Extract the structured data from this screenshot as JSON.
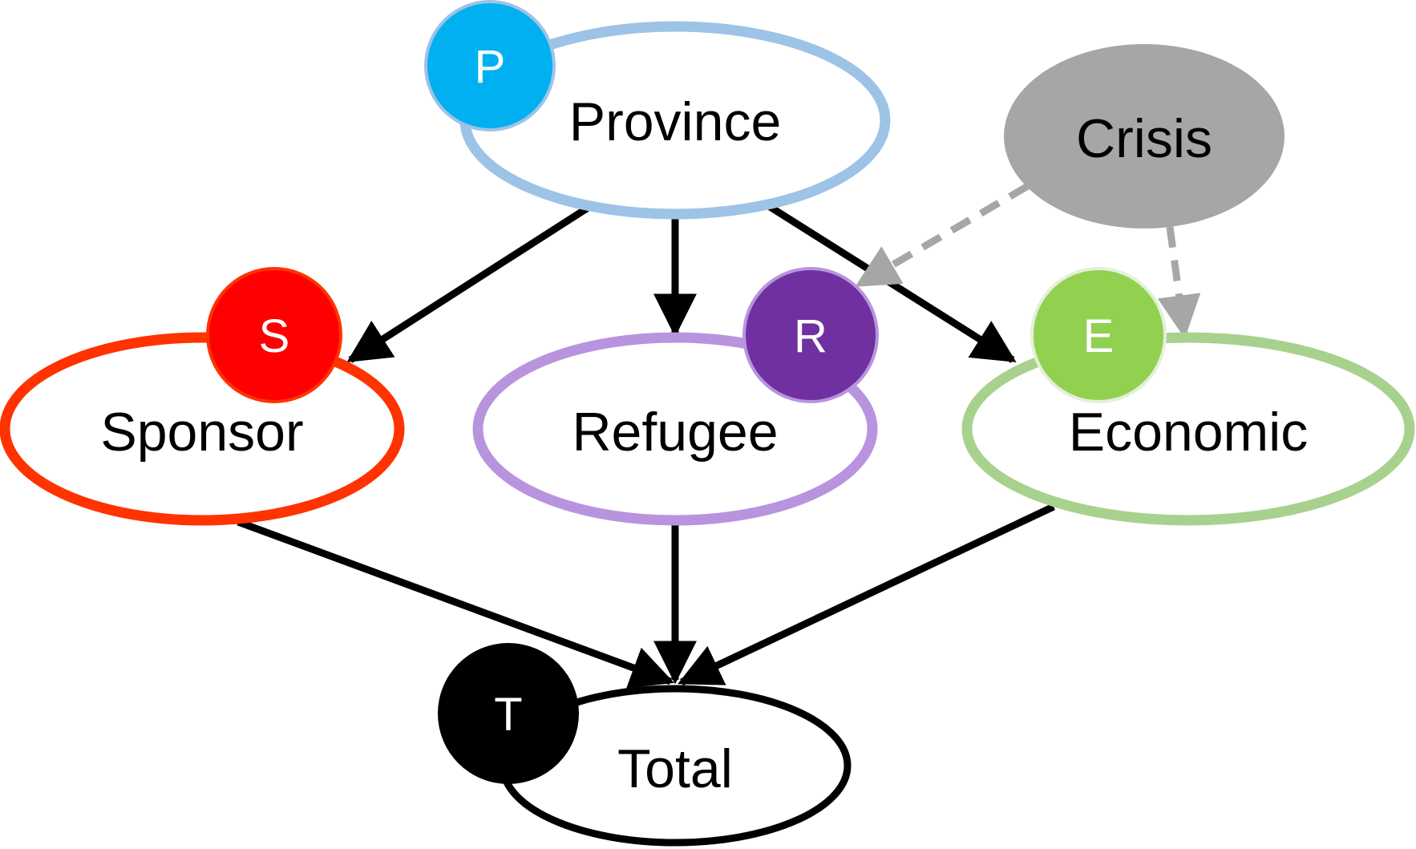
{
  "nodes": {
    "province": {
      "label": "Province",
      "badge": "P",
      "outline_color": "#9DC3E6",
      "badge_color": "#00B0F0"
    },
    "crisis": {
      "label": "Crisis",
      "fill_color": "#A6A6A6"
    },
    "sponsor": {
      "label": "Sponsor",
      "badge": "S",
      "outline_color": "#FF3300",
      "badge_color": "#FF0000"
    },
    "refugee": {
      "label": "Refugee",
      "badge": "R",
      "outline_color": "#B894DE",
      "badge_color": "#7030A0"
    },
    "economic": {
      "label": "Economic",
      "badge": "E",
      "outline_color": "#A9D18E",
      "badge_color": "#92D050"
    },
    "total": {
      "label": "Total",
      "badge": "T",
      "outline_color": "#000000",
      "badge_color": "#000000"
    }
  },
  "edges": [
    {
      "from": "province",
      "to": "sponsor",
      "style": "solid"
    },
    {
      "from": "province",
      "to": "refugee",
      "style": "solid"
    },
    {
      "from": "province",
      "to": "economic",
      "style": "solid"
    },
    {
      "from": "crisis",
      "to": "refugee",
      "style": "dashed"
    },
    {
      "from": "crisis",
      "to": "economic",
      "style": "dashed"
    },
    {
      "from": "sponsor",
      "to": "total",
      "style": "solid"
    },
    {
      "from": "refugee",
      "to": "total",
      "style": "solid"
    },
    {
      "from": "economic",
      "to": "total",
      "style": "solid"
    }
  ]
}
